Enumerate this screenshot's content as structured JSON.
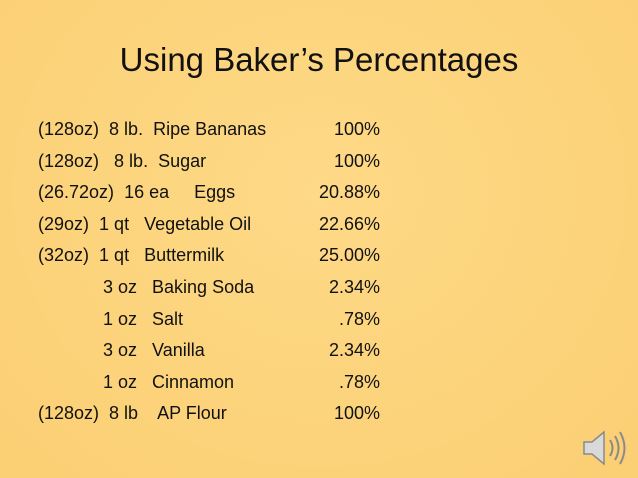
{
  "title": "Using Baker’s Percentages",
  "rows": [
    {
      "weight": "(128oz)",
      "item": "8 lb.  Ripe Bananas",
      "percent": "100%"
    },
    {
      "weight": "(128oz)",
      "item": " 8 lb.  Sugar",
      "percent": "100%"
    },
    {
      "weight": "(26.72oz)",
      "item": "16 ea     Eggs",
      "percent": "20.88%"
    },
    {
      "weight": "(29oz)",
      "item": "1 qt   Vegetable Oil",
      "percent": "22.66%"
    },
    {
      "weight": "(32oz)",
      "item": "1 qt   Buttermilk",
      "percent": "25.00%"
    },
    {
      "item": "3 oz   Baking Soda",
      "percent": "2.34%"
    },
    {
      "item": "1 oz   Salt",
      "percent": ".78%"
    },
    {
      "item": "3 oz   Vanilla",
      "percent": "2.34%"
    },
    {
      "item": "1 oz   Cinnamon",
      "percent": ".78%"
    },
    {
      "weight": "(128oz)",
      "item": "8 lb    AP Flour",
      "percent": "100%"
    }
  ]
}
